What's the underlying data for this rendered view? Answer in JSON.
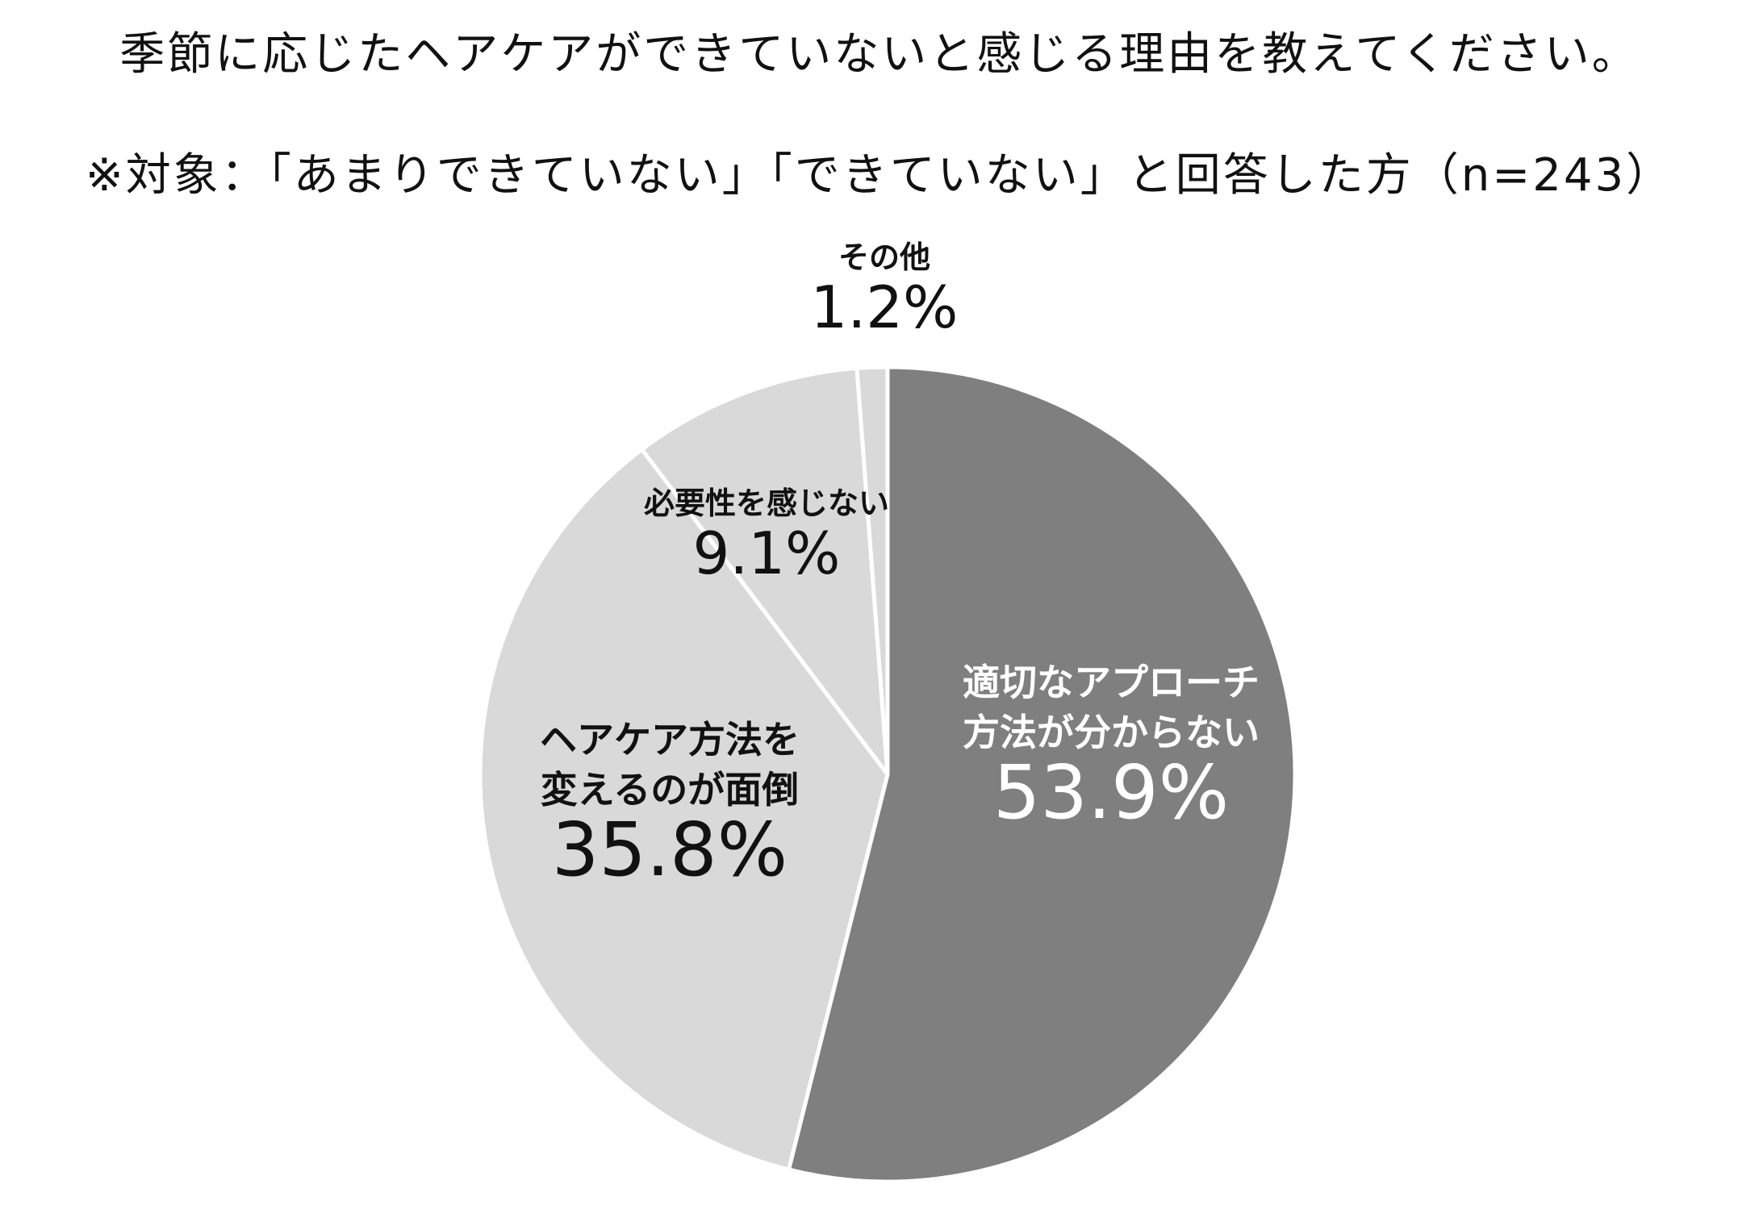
{
  "title": "季節に応じたヘアケアができていないと感じる理由を教えてください。",
  "subtitle": "※対象：「あまりできていない」「できていない」と回答した方（n=243）",
  "chart_data": {
    "type": "pie",
    "start_angle_deg": 0,
    "direction": "clockwise",
    "slices": [
      {
        "label_lines": [
          "適切なアプローチ",
          "方法が分からない"
        ],
        "value": 53.9,
        "value_label": "53.9%",
        "color": "#7f7f7f",
        "text_color": "#ffffff"
      },
      {
        "label_lines": [
          "ヘアケア方法を",
          "変えるのが面倒"
        ],
        "value": 35.8,
        "value_label": "35.8%",
        "color": "#d9d9d9",
        "text_color": "#111111"
      },
      {
        "label_lines": [
          "必要性を感じない"
        ],
        "value": 9.1,
        "value_label": "9.1%",
        "color": "#d9d9d9",
        "text_color": "#111111"
      },
      {
        "label_lines": [
          "その他"
        ],
        "value": 1.2,
        "value_label": "1.2%",
        "color": "#d9d9d9",
        "text_color": "#111111"
      }
    ]
  }
}
